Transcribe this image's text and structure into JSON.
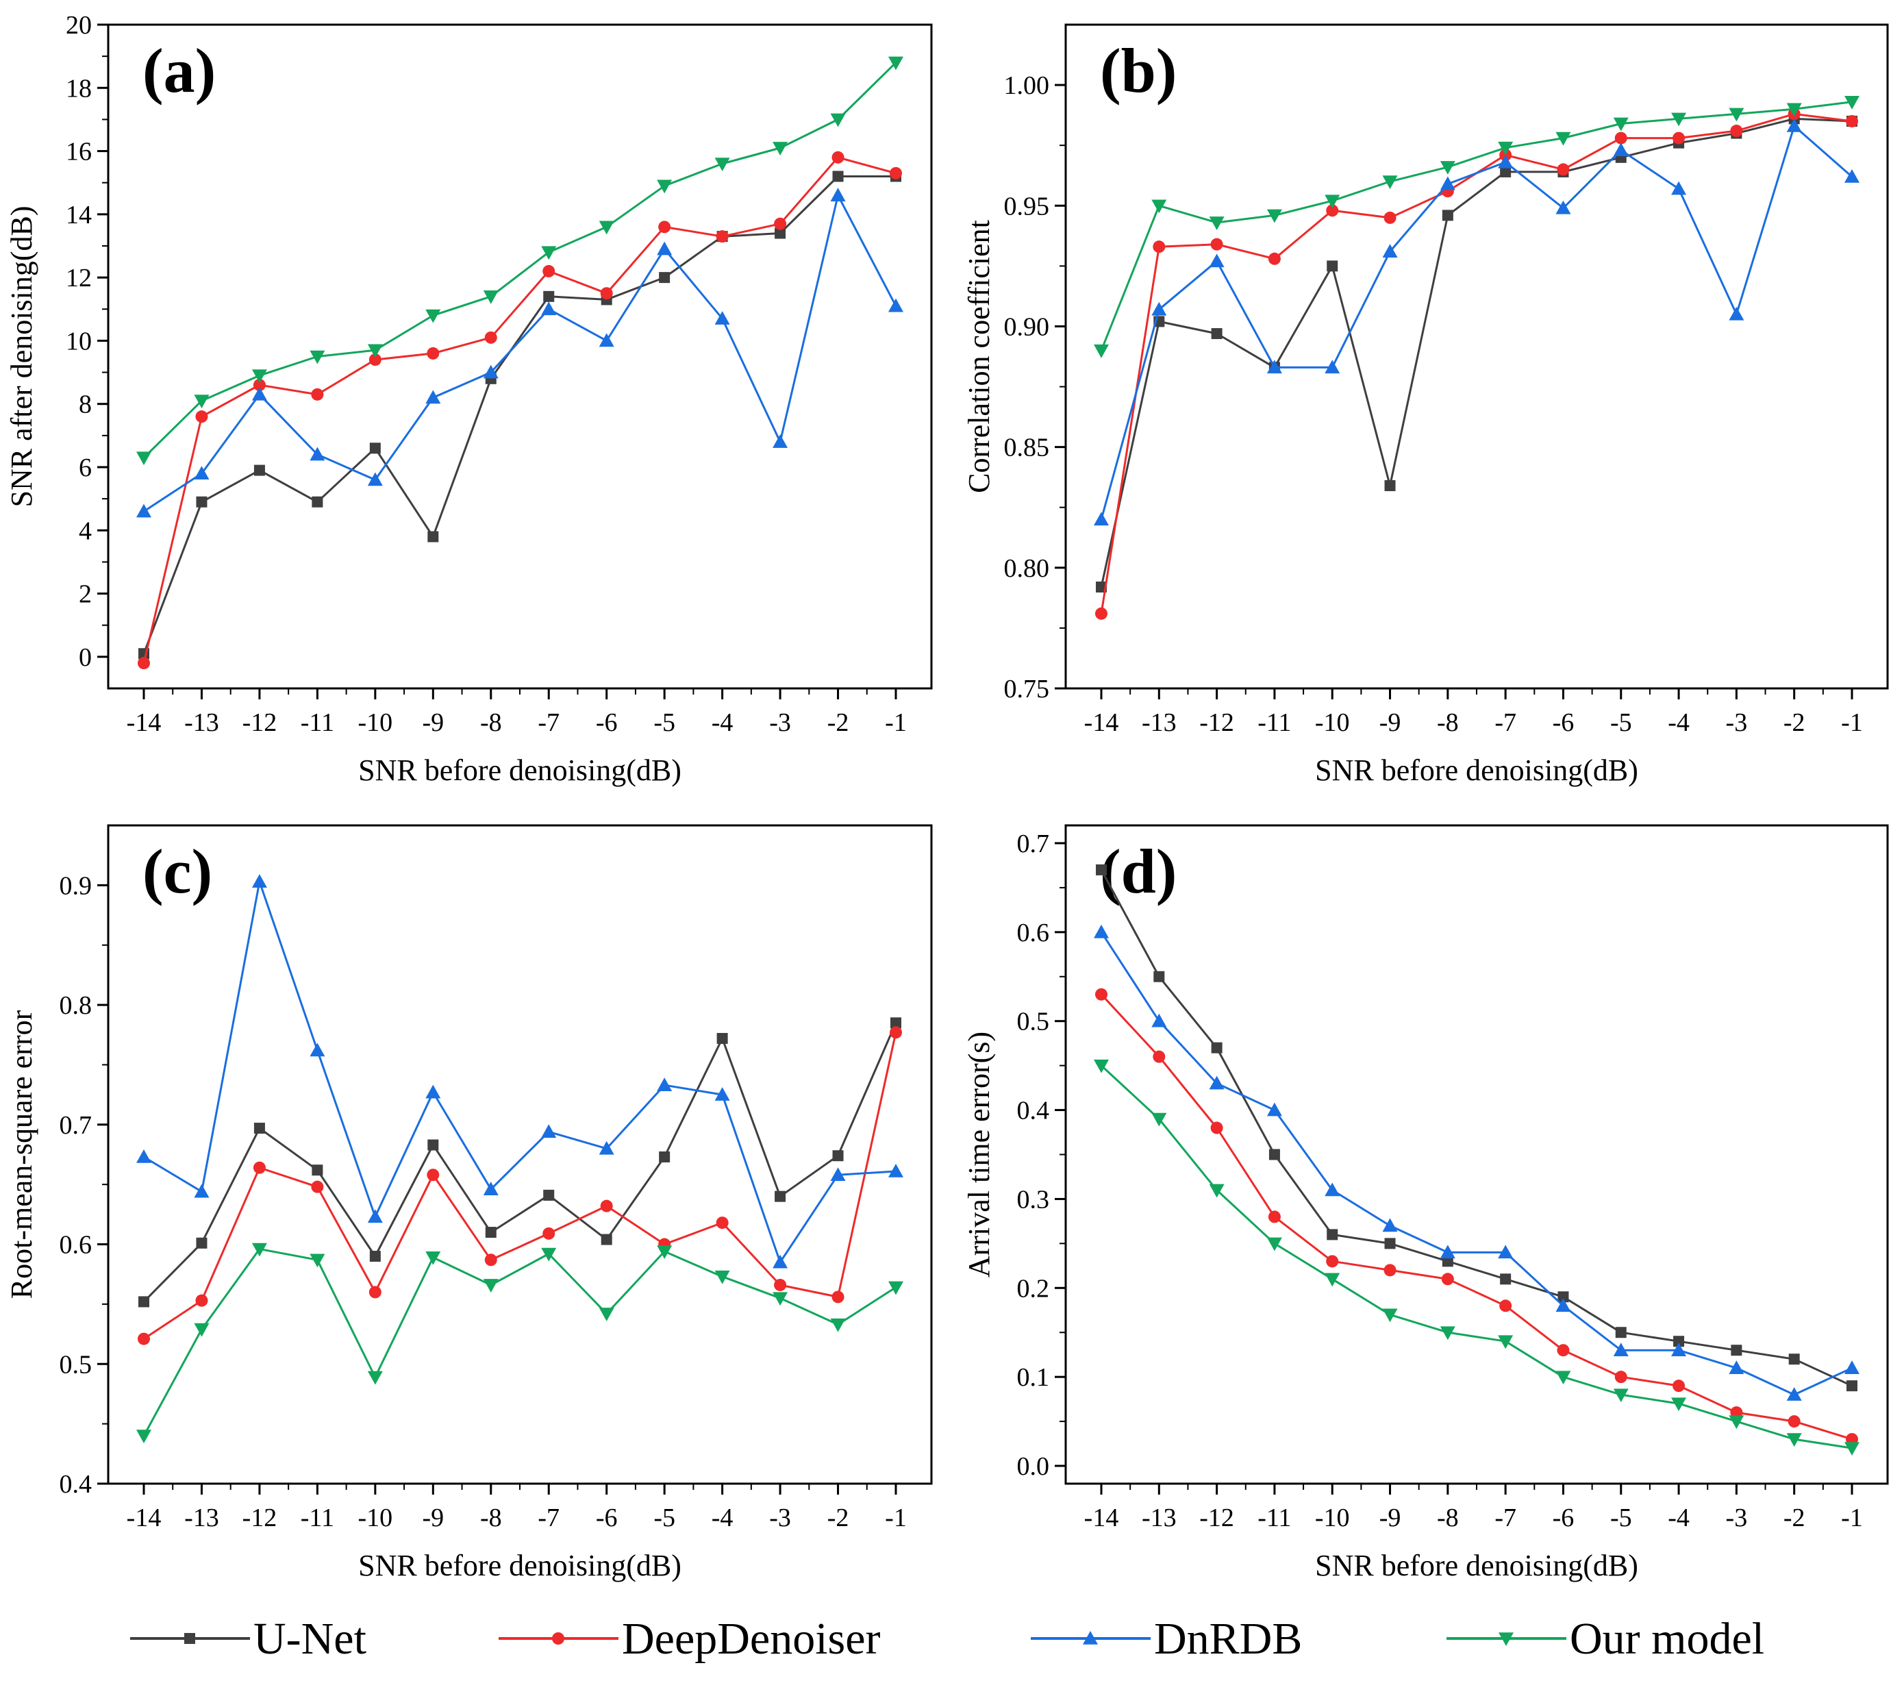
{
  "series_styles": [
    {
      "name": "U-Net",
      "color": "#3f3f3f",
      "marker": "square"
    },
    {
      "name": "DeepDenoiser",
      "color": "#ee2a2a",
      "marker": "circle"
    },
    {
      "name": "DnRDB",
      "color": "#1a6ee0",
      "marker": "triangle-up"
    },
    {
      "name": "Our model",
      "color": "#12a65c",
      "marker": "triangle-down"
    }
  ],
  "legend": {
    "position": "bottom",
    "entries": [
      "U-Net",
      "DeepDenoiser",
      "DnRDB",
      "Our model"
    ]
  },
  "chart_data": [
    {
      "type": "line",
      "panel": "(a)",
      "xlabel": "SNR before denoising(dB)",
      "ylabel": "SNR after denoising(dB)",
      "x": [
        -14,
        -13,
        -12,
        -11,
        -10,
        -9,
        -8,
        -7,
        -6,
        -5,
        -4,
        -3,
        -2,
        -1
      ],
      "xticks": [
        "-14",
        "-13",
        "-12",
        "-11",
        "-10",
        "-9",
        "-8",
        "-7",
        "-6",
        "-5",
        "-4",
        "-3",
        "-2",
        "-1"
      ],
      "ylim": [
        -1,
        20
      ],
      "yticks": [
        0,
        2,
        4,
        6,
        8,
        10,
        12,
        14,
        16,
        18,
        20
      ],
      "ytick_labels": [
        "0",
        "2",
        "4",
        "6",
        "8",
        "10",
        "12",
        "14",
        "16",
        "18",
        "20"
      ],
      "series": [
        {
          "name": "U-Net",
          "values": [
            0.1,
            4.9,
            5.9,
            4.9,
            6.6,
            3.8,
            8.8,
            11.4,
            11.3,
            12.0,
            13.3,
            13.4,
            15.2,
            15.2
          ]
        },
        {
          "name": "DeepDenoiser",
          "values": [
            -0.2,
            7.6,
            8.6,
            8.3,
            9.4,
            9.6,
            10.1,
            12.2,
            11.5,
            13.6,
            13.3,
            13.7,
            15.8,
            15.3
          ]
        },
        {
          "name": "DnRDB",
          "values": [
            4.6,
            5.8,
            8.3,
            6.4,
            5.6,
            8.2,
            9.0,
            11.0,
            10.0,
            12.9,
            10.7,
            6.8,
            14.6,
            11.1
          ]
        },
        {
          "name": "Our model",
          "values": [
            6.3,
            8.1,
            8.9,
            9.5,
            9.7,
            10.8,
            11.4,
            12.8,
            13.6,
            14.9,
            15.6,
            16.1,
            17.0,
            18.8
          ]
        }
      ]
    },
    {
      "type": "line",
      "panel": "(b)",
      "xlabel": "SNR before denoising(dB)",
      "ylabel": "Correlation coefficient",
      "x": [
        -14,
        -13,
        -12,
        -11,
        -10,
        -9,
        -8,
        -7,
        -6,
        -5,
        -4,
        -3,
        -2,
        -1
      ],
      "xticks": [
        "-14",
        "-13",
        "-12",
        "-11",
        "-10",
        "-9",
        "-8",
        "-7",
        "-6",
        "-5",
        "-4",
        "-3",
        "-2",
        "-1"
      ],
      "ylim": [
        0.75,
        1.025
      ],
      "yticks": [
        0.75,
        0.8,
        0.85,
        0.9,
        0.95,
        1.0
      ],
      "ytick_labels": [
        "0.75",
        "0.80",
        "0.85",
        "0.90",
        "0.95",
        "1.00"
      ],
      "series": [
        {
          "name": "U-Net",
          "values": [
            0.792,
            0.902,
            0.897,
            0.883,
            0.925,
            0.834,
            0.946,
            0.964,
            0.964,
            0.97,
            0.976,
            0.98,
            0.986,
            0.985
          ]
        },
        {
          "name": "DeepDenoiser",
          "values": [
            0.781,
            0.933,
            0.934,
            0.928,
            0.948,
            0.945,
            0.956,
            0.971,
            0.965,
            0.978,
            0.978,
            0.981,
            0.988,
            0.985
          ]
        },
        {
          "name": "DnRDB",
          "values": [
            0.82,
            0.907,
            0.927,
            0.883,
            0.883,
            0.931,
            0.959,
            0.968,
            0.949,
            0.973,
            0.957,
            0.905,
            0.983,
            0.962
          ]
        },
        {
          "name": "Our model",
          "values": [
            0.89,
            0.95,
            0.943,
            0.946,
            0.952,
            0.96,
            0.966,
            0.974,
            0.978,
            0.984,
            0.986,
            0.988,
            0.99,
            0.993
          ]
        }
      ]
    },
    {
      "type": "line",
      "panel": "(c)",
      "xlabel": "SNR before denoising(dB)",
      "ylabel": "Root-mean-square error",
      "x": [
        -14,
        -13,
        -12,
        -11,
        -10,
        -9,
        -8,
        -7,
        -6,
        -5,
        -4,
        -3,
        -2,
        -1
      ],
      "xticks": [
        "-14",
        "-13",
        "-12",
        "-11",
        "-10",
        "-9",
        "-8",
        "-7",
        "-6",
        "-5",
        "-4",
        "-3",
        "-2",
        "-1"
      ],
      "ylim": [
        0.4,
        0.95
      ],
      "yticks": [
        0.4,
        0.5,
        0.6,
        0.7,
        0.8,
        0.9
      ],
      "ytick_labels": [
        "0.4",
        "0.5",
        "0.6",
        "0.7",
        "0.8",
        "0.9"
      ],
      "series": [
        {
          "name": "U-Net",
          "values": [
            0.552,
            0.601,
            0.697,
            0.662,
            0.59,
            0.683,
            0.61,
            0.641,
            0.604,
            0.673,
            0.772,
            0.64,
            0.674,
            0.785
          ]
        },
        {
          "name": "DeepDenoiser",
          "values": [
            0.521,
            0.553,
            0.664,
            0.648,
            0.56,
            0.658,
            0.587,
            0.609,
            0.632,
            0.6,
            0.618,
            0.566,
            0.556,
            0.777
          ]
        },
        {
          "name": "DnRDB",
          "values": [
            0.673,
            0.644,
            0.903,
            0.762,
            0.623,
            0.727,
            0.646,
            0.694,
            0.68,
            0.733,
            0.725,
            0.585,
            0.658,
            0.661
          ]
        },
        {
          "name": "Our model",
          "values": [
            0.44,
            0.529,
            0.596,
            0.587,
            0.489,
            0.589,
            0.566,
            0.592,
            0.542,
            0.594,
            0.573,
            0.555,
            0.533,
            0.564
          ]
        }
      ]
    },
    {
      "type": "line",
      "panel": "(d)",
      "xlabel": "SNR before denoising(dB)",
      "ylabel": "Arrival time error(s)",
      "x": [
        -14,
        -13,
        -12,
        -11,
        -10,
        -9,
        -8,
        -7,
        -6,
        -5,
        -4,
        -3,
        -2,
        -1
      ],
      "xticks": [
        "-14",
        "-13",
        "-12",
        "-11",
        "-10",
        "-9",
        "-8",
        "-7",
        "-6",
        "-5",
        "-4",
        "-3",
        "-2",
        "-1"
      ],
      "ylim": [
        -0.02,
        0.72
      ],
      "yticks": [
        0.0,
        0.1,
        0.2,
        0.3,
        0.4,
        0.5,
        0.6,
        0.7
      ],
      "ytick_labels": [
        "0.0",
        "0.1",
        "0.2",
        "0.3",
        "0.4",
        "0.5",
        "0.6",
        "0.7"
      ],
      "series": [
        {
          "name": "U-Net",
          "values": [
            0.67,
            0.55,
            0.47,
            0.35,
            0.26,
            0.25,
            0.23,
            0.21,
            0.19,
            0.15,
            0.14,
            0.13,
            0.12,
            0.09
          ]
        },
        {
          "name": "DeepDenoiser",
          "values": [
            0.53,
            0.46,
            0.38,
            0.28,
            0.23,
            0.22,
            0.21,
            0.18,
            0.13,
            0.1,
            0.09,
            0.06,
            0.05,
            0.03
          ]
        },
        {
          "name": "DnRDB",
          "values": [
            0.6,
            0.5,
            0.43,
            0.4,
            0.31,
            0.27,
            0.24,
            0.24,
            0.18,
            0.13,
            0.13,
            0.11,
            0.08,
            0.11
          ]
        },
        {
          "name": "Our model",
          "values": [
            0.45,
            0.39,
            0.31,
            0.25,
            0.21,
            0.17,
            0.15,
            0.14,
            0.1,
            0.08,
            0.07,
            0.05,
            0.03,
            0.02
          ]
        }
      ]
    }
  ]
}
